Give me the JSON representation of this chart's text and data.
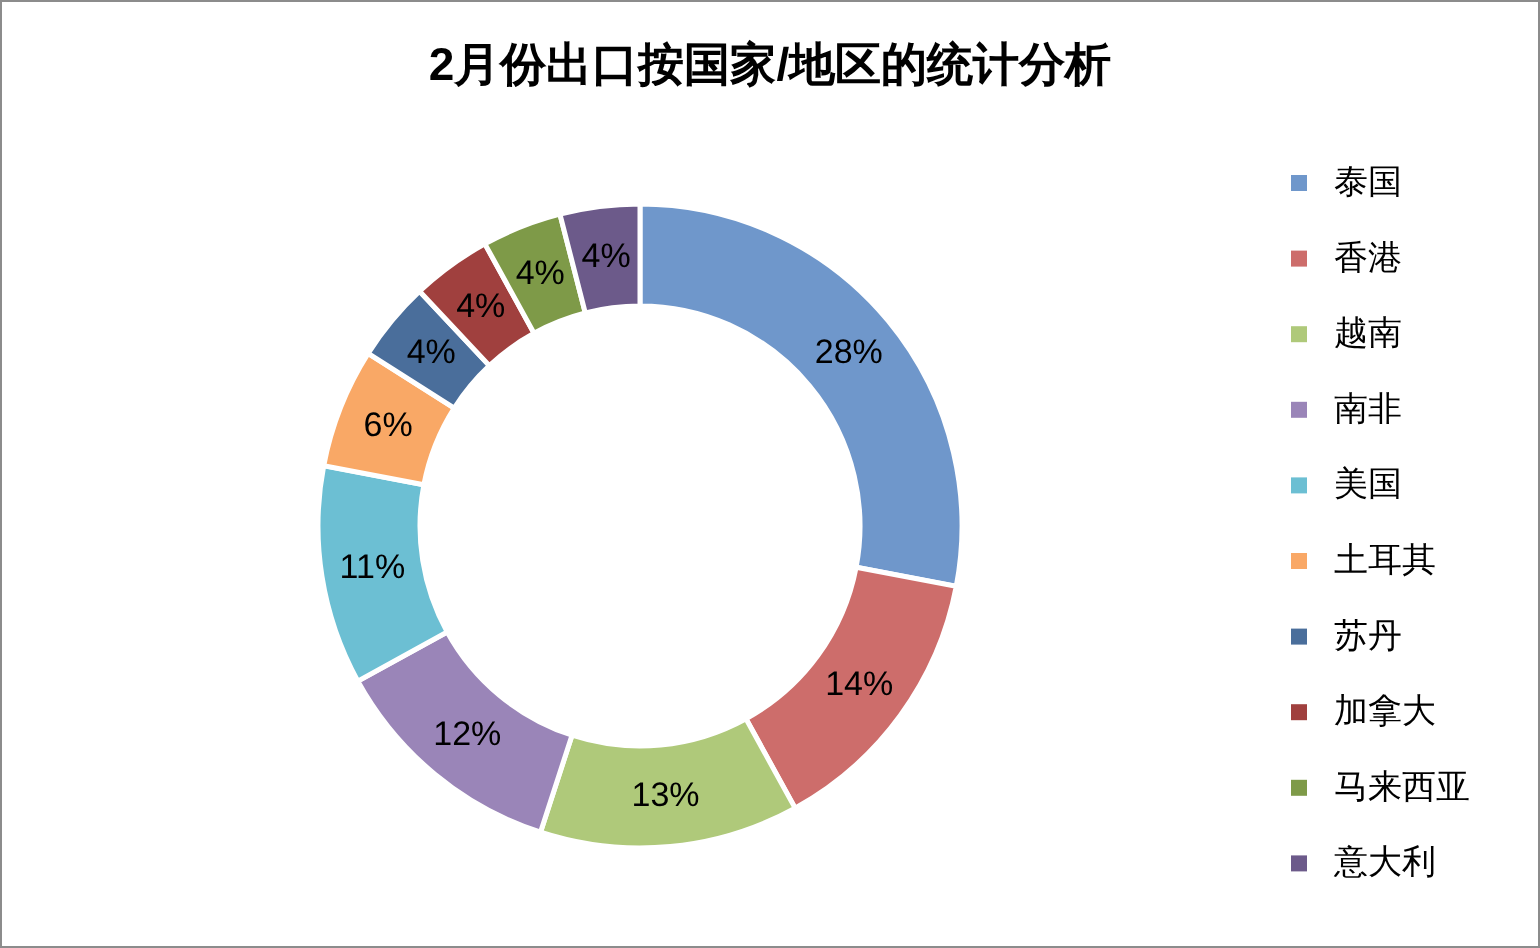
{
  "chart_data": {
    "type": "donut",
    "title": "2月份出口按国家/地区的统计分析",
    "categories": [
      "泰国",
      "香港",
      "越南",
      "南非",
      "美国",
      "土耳其",
      "苏丹",
      "加拿大",
      "马来西亚",
      "意大利"
    ],
    "values": [
      28,
      14,
      13,
      12,
      11,
      6,
      4,
      4,
      4,
      4
    ],
    "colors": [
      "#6f97cb",
      "#cd6d6b",
      "#afc97a",
      "#9a85b8",
      "#6cbfd3",
      "#f9a866",
      "#4a6e9b",
      "#a0403e",
      "#7e9a48",
      "#6c5a8a"
    ],
    "value_labels": [
      "28%",
      "14%",
      "13%",
      "12%",
      "11%",
      "6%",
      "4%",
      "4%",
      "4%",
      "4%"
    ],
    "legend": "right"
  }
}
